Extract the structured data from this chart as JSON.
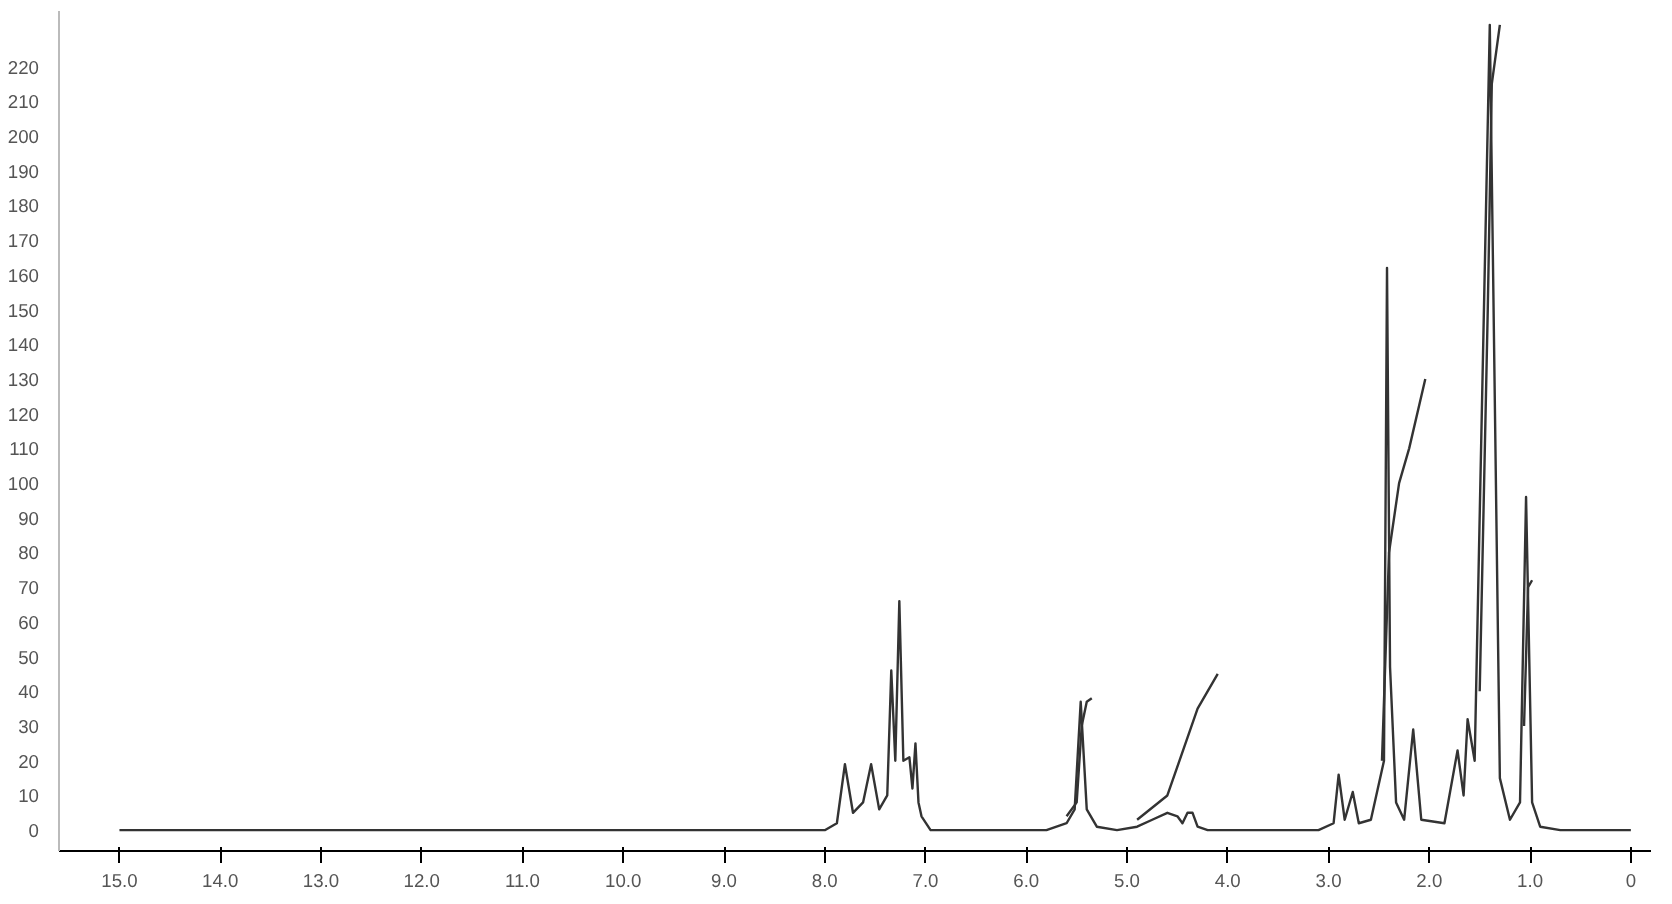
{
  "chart_data": {
    "type": "line",
    "xlim": [
      15.6,
      -0.2
    ],
    "ylim": [
      -6,
      236
    ],
    "xticks": [
      {
        "value": 15,
        "label": "15.0"
      },
      {
        "value": 14,
        "label": "14.0"
      },
      {
        "value": 13,
        "label": "13.0"
      },
      {
        "value": 12,
        "label": "12.0"
      },
      {
        "value": 11,
        "label": "11.0"
      },
      {
        "value": 10,
        "label": "10.0"
      },
      {
        "value": 9,
        "label": "9.0"
      },
      {
        "value": 8,
        "label": "8.0"
      },
      {
        "value": 7,
        "label": "7.0"
      },
      {
        "value": 6,
        "label": "6.0"
      },
      {
        "value": 5,
        "label": "5.0"
      },
      {
        "value": 4,
        "label": "4.0"
      },
      {
        "value": 3,
        "label": "3.0"
      },
      {
        "value": 2,
        "label": "2.0"
      },
      {
        "value": 1,
        "label": "1.0"
      },
      0
    ],
    "yticks": [
      0,
      10,
      20,
      30,
      40,
      50,
      60,
      70,
      80,
      90,
      100,
      110,
      120,
      130,
      140,
      150,
      160,
      170,
      180,
      190,
      200,
      210,
      220
    ],
    "grid": false,
    "marker": "none",
    "line_style": "solid",
    "series": [
      {
        "color": "#333333",
        "x": [
          15.0,
          8.0,
          7.88,
          7.8,
          7.72,
          7.62,
          7.54,
          7.46,
          7.38,
          7.34,
          7.3,
          7.26,
          7.22,
          7.16,
          7.13,
          7.1,
          7.07,
          7.04,
          6.95,
          5.8,
          5.6,
          5.52,
          5.46,
          5.4,
          5.3,
          5.1,
          4.9,
          4.75,
          4.6,
          4.5,
          4.45,
          4.4,
          4.35,
          4.3,
          4.2,
          3.1,
          2.95,
          2.9,
          2.84,
          2.76,
          2.7,
          2.58,
          2.45,
          2.42,
          2.39,
          2.33,
          2.25,
          2.16,
          2.08,
          1.85,
          1.72,
          1.66,
          1.62,
          1.55,
          1.4,
          1.3,
          1.2,
          1.1,
          1.04,
          0.98,
          0.9,
          0.7,
          0.0
        ],
        "values": [
          0,
          0,
          2,
          19,
          5,
          8,
          19,
          6,
          10,
          46,
          20,
          66,
          20,
          21,
          12,
          25,
          8,
          4,
          0,
          0,
          2,
          6,
          37,
          6,
          1,
          0,
          1,
          3,
          5,
          4,
          2,
          5,
          5,
          1,
          0,
          0,
          2,
          16,
          3,
          11,
          2,
          3,
          20,
          162,
          47,
          8,
          3,
          29,
          3,
          2,
          23,
          10,
          32,
          20,
          232,
          15,
          3,
          8,
          96,
          8,
          1,
          0,
          0
        ]
      },
      {
        "color": "#333333",
        "x": [
          5.6,
          5.5,
          5.45,
          5.4,
          5.35
        ],
        "values": [
          4,
          8,
          30,
          37,
          38
        ]
      },
      {
        "color": "#333333",
        "x": [
          4.9,
          4.6,
          4.3,
          4.1
        ],
        "values": [
          3,
          10,
          35,
          45
        ]
      },
      {
        "color": "#333333",
        "x": [
          2.47,
          2.4,
          2.3,
          2.2,
          2.04
        ],
        "values": [
          20,
          80,
          100,
          110,
          130
        ]
      },
      {
        "color": "#333333",
        "x": [
          1.5,
          1.42,
          1.38,
          1.3
        ],
        "values": [
          40,
          150,
          215,
          232
        ]
      },
      {
        "color": "#333333",
        "x": [
          1.06,
          1.02,
          0.98
        ],
        "values": [
          30,
          70,
          72
        ]
      }
    ]
  }
}
